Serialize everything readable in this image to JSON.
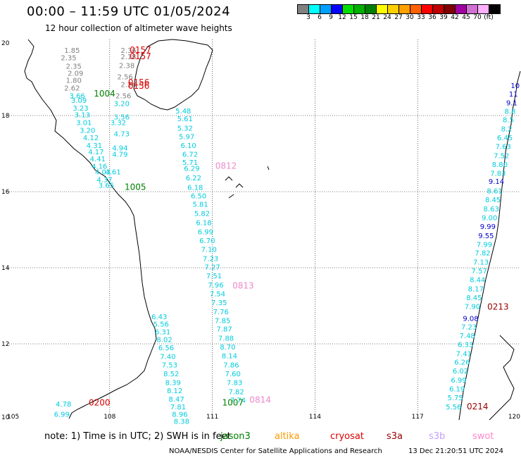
{
  "title": "00:00 – 11:59 UTC 01/05/2024",
  "subtitle": "12 hour collection of altimeter wave heights",
  "legend": {
    "colors": [
      "#808080",
      "#00ffff",
      "#00a0ff",
      "#0000ff",
      "#00e000",
      "#00b000",
      "#008000",
      "#ffff00",
      "#ffd000",
      "#ffa000",
      "#ff6000",
      "#ff0000",
      "#c00000",
      "#800000",
      "#a000a0",
      "#d070d0",
      "#ffb0ff",
      "#000000"
    ],
    "labels": [
      "3",
      "6",
      "9",
      "12",
      "15",
      "18",
      "21",
      "24",
      "27",
      "30",
      "33",
      "36",
      "39",
      "42",
      "45",
      "70",
      "(ft)"
    ]
  },
  "axes": {
    "x_ticks": [
      "105",
      "108",
      "111",
      "114",
      "117",
      "120"
    ],
    "y_ticks": [
      "20",
      "18",
      "16",
      "14",
      "12",
      "10"
    ]
  },
  "chart_data": {
    "type": "map",
    "projection": "lat-lon",
    "xlim": [
      105,
      120
    ],
    "ylim": [
      10,
      20
    ],
    "grid": true,
    "labels": [
      {
        "text": "1.85",
        "lon": 106.9,
        "lat": 19.65,
        "color": "#808080"
      },
      {
        "text": "2.35",
        "lon": 106.8,
        "lat": 19.45,
        "color": "#808080"
      },
      {
        "text": "2.35",
        "lon": 106.95,
        "lat": 19.23,
        "color": "#808080"
      },
      {
        "text": "2.09",
        "lon": 107.0,
        "lat": 19.05,
        "color": "#808080"
      },
      {
        "text": "1.80",
        "lon": 106.95,
        "lat": 18.86,
        "color": "#808080"
      },
      {
        "text": "2.62",
        "lon": 106.9,
        "lat": 18.66,
        "color": "#808080"
      },
      {
        "text": "3.66",
        "lon": 107.05,
        "lat": 18.45,
        "color": "#00ccdd"
      },
      {
        "text": "3.09",
        "lon": 107.1,
        "lat": 18.33,
        "color": "#00ccdd"
      },
      {
        "text": "3.23",
        "lon": 107.15,
        "lat": 18.13,
        "color": "#00ccdd"
      },
      {
        "text": "3.13",
        "lon": 107.2,
        "lat": 17.95,
        "color": "#00ccdd"
      },
      {
        "text": "3.01",
        "lon": 107.25,
        "lat": 17.75,
        "color": "#00ccdd"
      },
      {
        "text": "3.20",
        "lon": 107.35,
        "lat": 17.55,
        "color": "#00ccdd"
      },
      {
        "text": "4.12",
        "lon": 107.45,
        "lat": 17.35,
        "color": "#00ccdd"
      },
      {
        "text": "4.31",
        "lon": 107.55,
        "lat": 17.15,
        "color": "#00ccdd"
      },
      {
        "text": "4.17",
        "lon": 107.6,
        "lat": 16.98,
        "color": "#00ccdd"
      },
      {
        "text": "4.41",
        "lon": 107.65,
        "lat": 16.8,
        "color": "#00ccdd"
      },
      {
        "text": "4.16",
        "lon": 107.7,
        "lat": 16.6,
        "color": "#00ccdd"
      },
      {
        "text": "4.03",
        "lon": 107.8,
        "lat": 16.45,
        "color": "#00ccdd"
      },
      {
        "text": "4.37",
        "lon": 107.85,
        "lat": 16.25,
        "color": "#00ccdd"
      },
      {
        "text": "3.65",
        "lon": 107.9,
        "lat": 16.1,
        "color": "#00ccdd"
      },
      {
        "text": "2.36",
        "lon": 108.55,
        "lat": 19.65,
        "color": "#808080"
      },
      {
        "text": "2.18",
        "lon": 108.55,
        "lat": 19.48,
        "color": "#808080"
      },
      {
        "text": "2.38",
        "lon": 108.5,
        "lat": 19.25,
        "color": "#808080"
      },
      {
        "text": "2.56",
        "lon": 108.45,
        "lat": 18.95,
        "color": "#808080"
      },
      {
        "text": "2.24",
        "lon": 108.55,
        "lat": 18.75,
        "color": "#808080"
      },
      {
        "text": "2.56",
        "lon": 108.4,
        "lat": 18.45,
        "color": "#808080"
      },
      {
        "text": "3.20",
        "lon": 108.35,
        "lat": 18.25,
        "color": "#00ccdd"
      },
      {
        "text": "3.56",
        "lon": 108.35,
        "lat": 17.9,
        "color": "#00ccdd"
      },
      {
        "text": "3.32",
        "lon": 108.25,
        "lat": 17.75,
        "color": "#00ccdd"
      },
      {
        "text": "4.73",
        "lon": 108.35,
        "lat": 17.45,
        "color": "#00ccdd"
      },
      {
        "text": "4.94",
        "lon": 108.3,
        "lat": 17.08,
        "color": "#00ccdd"
      },
      {
        "text": "4.79",
        "lon": 108.3,
        "lat": 16.92,
        "color": "#00ccdd"
      },
      {
        "text": "4.61",
        "lon": 108.1,
        "lat": 16.45,
        "color": "#00ccdd"
      },
      {
        "text": "0157",
        "lon": 108.9,
        "lat": 19.65,
        "color": "#dd0000"
      },
      {
        "text": "0157",
        "lon": 108.9,
        "lat": 19.48,
        "color": "#dd0000"
      },
      {
        "text": "0156",
        "lon": 108.85,
        "lat": 18.8,
        "color": "#dd0000"
      },
      {
        "text": "0156",
        "lon": 108.85,
        "lat": 18.7,
        "color": "#dd0000"
      },
      {
        "text": "1004",
        "lon": 107.85,
        "lat": 18.5,
        "color": "#008000"
      },
      {
        "text": "1005",
        "lon": 108.75,
        "lat": 16.05,
        "color": "#008000"
      },
      {
        "text": "5.48",
        "lon": 110.15,
        "lat": 18.06,
        "color": "#00ccdd"
      },
      {
        "text": "5.61",
        "lon": 110.2,
        "lat": 17.85,
        "color": "#00ccdd"
      },
      {
        "text": "5.32",
        "lon": 110.2,
        "lat": 17.6,
        "color": "#00ccdd"
      },
      {
        "text": "5.97",
        "lon": 110.25,
        "lat": 17.38,
        "color": "#00ccdd"
      },
      {
        "text": "6.10",
        "lon": 110.3,
        "lat": 17.15,
        "color": "#00ccdd"
      },
      {
        "text": "6.72",
        "lon": 110.35,
        "lat": 16.92,
        "color": "#00ccdd"
      },
      {
        "text": "5.71",
        "lon": 110.35,
        "lat": 16.7,
        "color": "#00ccdd"
      },
      {
        "text": "6.29",
        "lon": 110.4,
        "lat": 16.55,
        "color": "#00ccdd"
      },
      {
        "text": "6.22",
        "lon": 110.45,
        "lat": 16.3,
        "color": "#00ccdd"
      },
      {
        "text": "6.18",
        "lon": 110.5,
        "lat": 16.05,
        "color": "#00ccdd"
      },
      {
        "text": "6.50",
        "lon": 110.6,
        "lat": 15.82,
        "color": "#00ccdd"
      },
      {
        "text": "5.81",
        "lon": 110.65,
        "lat": 15.6,
        "color": "#00ccdd"
      },
      {
        "text": "5.82",
        "lon": 110.7,
        "lat": 15.36,
        "color": "#00ccdd"
      },
      {
        "text": "6.18",
        "lon": 110.75,
        "lat": 15.12,
        "color": "#00ccdd"
      },
      {
        "text": "6.99",
        "lon": 110.8,
        "lat": 14.88,
        "color": "#00ccdd"
      },
      {
        "text": "6.70",
        "lon": 110.85,
        "lat": 14.65,
        "color": "#00ccdd"
      },
      {
        "text": "7.10",
        "lon": 110.9,
        "lat": 14.42,
        "color": "#00ccdd"
      },
      {
        "text": "7.23",
        "lon": 110.95,
        "lat": 14.18,
        "color": "#00ccdd"
      },
      {
        "text": "7.27",
        "lon": 111.0,
        "lat": 13.95,
        "color": "#00ccdd"
      },
      {
        "text": "7.51",
        "lon": 111.05,
        "lat": 13.72,
        "color": "#00ccdd"
      },
      {
        "text": "7.96",
        "lon": 111.1,
        "lat": 13.48,
        "color": "#00ccdd"
      },
      {
        "text": "7.54",
        "lon": 111.15,
        "lat": 13.25,
        "color": "#00ccdd"
      },
      {
        "text": "7.35",
        "lon": 111.2,
        "lat": 13.02,
        "color": "#00ccdd"
      },
      {
        "text": "7.76",
        "lon": 111.25,
        "lat": 12.78,
        "color": "#00ccdd"
      },
      {
        "text": "7.85",
        "lon": 111.3,
        "lat": 12.55,
        "color": "#00ccdd"
      },
      {
        "text": "7.87",
        "lon": 111.35,
        "lat": 12.32,
        "color": "#00ccdd"
      },
      {
        "text": "7.88",
        "lon": 111.4,
        "lat": 12.08,
        "color": "#00ccdd"
      },
      {
        "text": "8.70",
        "lon": 111.45,
        "lat": 11.85,
        "color": "#00ccdd"
      },
      {
        "text": "8.14",
        "lon": 111.5,
        "lat": 11.62,
        "color": "#00ccdd"
      },
      {
        "text": "7.86",
        "lon": 111.55,
        "lat": 11.38,
        "color": "#00ccdd"
      },
      {
        "text": "7.60",
        "lon": 111.6,
        "lat": 11.15,
        "color": "#00ccdd"
      },
      {
        "text": "7.83",
        "lon": 111.65,
        "lat": 10.92,
        "color": "#00ccdd"
      },
      {
        "text": "7.82",
        "lon": 111.7,
        "lat": 10.68,
        "color": "#00ccdd"
      },
      {
        "text": "7.74",
        "lon": 111.75,
        "lat": 10.45,
        "color": "#00ccdd"
      },
      {
        "text": "0812",
        "lon": 111.4,
        "lat": 16.6,
        "color": "#ee88cc"
      },
      {
        "text": "0813",
        "lon": 111.9,
        "lat": 13.45,
        "color": "#ee88cc"
      },
      {
        "text": "0814",
        "lon": 112.4,
        "lat": 10.45,
        "color": "#ee88cc"
      },
      {
        "text": "1007",
        "lon": 111.6,
        "lat": 10.38,
        "color": "#008000"
      },
      {
        "text": "6.43",
        "lon": 109.45,
        "lat": 12.65,
        "color": "#00ccdd"
      },
      {
        "text": "5.56",
        "lon": 109.5,
        "lat": 12.45,
        "color": "#00ccdd"
      },
      {
        "text": "6.31",
        "lon": 109.55,
        "lat": 12.25,
        "color": "#00ccdd"
      },
      {
        "text": "8.02",
        "lon": 109.6,
        "lat": 12.05,
        "color": "#00ccdd"
      },
      {
        "text": "6.56",
        "lon": 109.65,
        "lat": 11.83,
        "color": "#00ccdd"
      },
      {
        "text": "7.40",
        "lon": 109.7,
        "lat": 11.6,
        "color": "#00ccdd"
      },
      {
        "text": "7.53",
        "lon": 109.75,
        "lat": 11.38,
        "color": "#00ccdd"
      },
      {
        "text": "8.52",
        "lon": 109.8,
        "lat": 11.15,
        "color": "#00ccdd"
      },
      {
        "text": "8.39",
        "lon": 109.85,
        "lat": 10.92,
        "color": "#00ccdd"
      },
      {
        "text": "8.12",
        "lon": 109.9,
        "lat": 10.7,
        "color": "#00ccdd"
      },
      {
        "text": "8.47",
        "lon": 109.95,
        "lat": 10.48,
        "color": "#00ccdd"
      },
      {
        "text": "7.81",
        "lon": 110.0,
        "lat": 10.28,
        "color": "#00ccdd"
      },
      {
        "text": "8.96",
        "lon": 110.05,
        "lat": 10.08,
        "color": "#00ccdd"
      },
      {
        "text": "8.38",
        "lon": 110.1,
        "lat": 9.9,
        "color": "#00ccdd"
      },
      {
        "text": "4.78",
        "lon": 106.65,
        "lat": 10.35,
        "color": "#00ccdd"
      },
      {
        "text": "6.99",
        "lon": 106.6,
        "lat": 10.08,
        "color": "#00ccdd"
      },
      {
        "text": "0200",
        "lon": 107.7,
        "lat": 10.38,
        "color": "#dd0000"
      },
      {
        "text": "10",
        "lon": 119.85,
        "lat": 18.72,
        "color": "#0000cc"
      },
      {
        "text": "11",
        "lon": 119.8,
        "lat": 18.5,
        "color": "#0000cc"
      },
      {
        "text": "9.1",
        "lon": 119.75,
        "lat": 18.27,
        "color": "#0000cc"
      },
      {
        "text": "8.8",
        "lon": 119.7,
        "lat": 18.05,
        "color": "#00ccdd"
      },
      {
        "text": "8.5",
        "lon": 119.65,
        "lat": 17.82,
        "color": "#00ccdd"
      },
      {
        "text": "8.2",
        "lon": 119.6,
        "lat": 17.58,
        "color": "#00ccdd"
      },
      {
        "text": "6.45",
        "lon": 119.55,
        "lat": 17.35,
        "color": "#00ccdd"
      },
      {
        "text": "7.63",
        "lon": 119.5,
        "lat": 17.12,
        "color": "#00ccdd"
      },
      {
        "text": "7.52",
        "lon": 119.45,
        "lat": 16.88,
        "color": "#00ccdd"
      },
      {
        "text": "8.80",
        "lon": 119.4,
        "lat": 16.65,
        "color": "#00ccdd"
      },
      {
        "text": "7.83",
        "lon": 119.35,
        "lat": 16.42,
        "color": "#00ccdd"
      },
      {
        "text": "9.14",
        "lon": 119.3,
        "lat": 16.2,
        "color": "#0000cc"
      },
      {
        "text": "8.61",
        "lon": 119.25,
        "lat": 15.95,
        "color": "#00ccdd"
      },
      {
        "text": "8.45",
        "lon": 119.2,
        "lat": 15.72,
        "color": "#00ccdd"
      },
      {
        "text": "8.63",
        "lon": 119.15,
        "lat": 15.48,
        "color": "#00ccdd"
      },
      {
        "text": "9.00",
        "lon": 119.1,
        "lat": 15.25,
        "color": "#00ccdd"
      },
      {
        "text": "9.99",
        "lon": 119.05,
        "lat": 15.02,
        "color": "#0000cc"
      },
      {
        "text": "9.55",
        "lon": 119.0,
        "lat": 14.78,
        "color": "#0000cc"
      },
      {
        "text": "7.99",
        "lon": 118.95,
        "lat": 14.55,
        "color": "#00ccdd"
      },
      {
        "text": "7.82",
        "lon": 118.9,
        "lat": 14.32,
        "color": "#00ccdd"
      },
      {
        "text": "7.13",
        "lon": 118.85,
        "lat": 14.08,
        "color": "#00ccdd"
      },
      {
        "text": "7.57",
        "lon": 118.8,
        "lat": 13.85,
        "color": "#00ccdd"
      },
      {
        "text": "8.44",
        "lon": 118.75,
        "lat": 13.62,
        "color": "#00ccdd"
      },
      {
        "text": "8.17",
        "lon": 118.7,
        "lat": 13.38,
        "color": "#00ccdd"
      },
      {
        "text": "8.45",
        "lon": 118.65,
        "lat": 13.15,
        "color": "#00ccdd"
      },
      {
        "text": "7.90",
        "lon": 118.6,
        "lat": 12.92,
        "color": "#00ccdd"
      },
      {
        "text": "9.08",
        "lon": 118.55,
        "lat": 12.6,
        "color": "#0000cc"
      },
      {
        "text": "7.23",
        "lon": 118.5,
        "lat": 12.38,
        "color": "#00ccdd"
      },
      {
        "text": "7.48",
        "lon": 118.45,
        "lat": 12.15,
        "color": "#00ccdd"
      },
      {
        "text": "6.33",
        "lon": 118.4,
        "lat": 11.92,
        "color": "#00ccdd"
      },
      {
        "text": "7.41",
        "lon": 118.35,
        "lat": 11.68,
        "color": "#00ccdd"
      },
      {
        "text": "6.26",
        "lon": 118.3,
        "lat": 11.45,
        "color": "#00ccdd"
      },
      {
        "text": "6.02",
        "lon": 118.25,
        "lat": 11.22,
        "color": "#00ccdd"
      },
      {
        "text": "6.99",
        "lon": 118.2,
        "lat": 10.98,
        "color": "#00ccdd"
      },
      {
        "text": "6.19",
        "lon": 118.15,
        "lat": 10.75,
        "color": "#00ccdd"
      },
      {
        "text": "5.75",
        "lon": 118.1,
        "lat": 10.52,
        "color": "#00ccdd"
      },
      {
        "text": "5.56",
        "lon": 118.05,
        "lat": 10.28,
        "color": "#00ccdd"
      },
      {
        "text": "0213",
        "lon": 119.35,
        "lat": 12.9,
        "color": "#990000"
      },
      {
        "text": "0214",
        "lon": 118.75,
        "lat": 10.28,
        "color": "#990000"
      }
    ]
  },
  "footer": {
    "note": "note:  1) Time is in UTC; 2) SWH is in feet",
    "satellites": [
      {
        "name": "jason3",
        "color": "#008000",
        "left": 313
      },
      {
        "name": "altika",
        "color": "#ff9900",
        "left": 390
      },
      {
        "name": "cryosat",
        "color": "#dd0000",
        "left": 469
      },
      {
        "name": "s3a",
        "color": "#990000",
        "left": 549
      },
      {
        "name": "s3b",
        "color": "#c0a0ff",
        "left": 609
      },
      {
        "name": "swot",
        "color": "#ff88cc",
        "left": 671
      }
    ],
    "credits": "NOAA/NESDIS Center for Satellite Applications and Research",
    "date": "13 Dec 21:20:51 UTC 2024"
  }
}
